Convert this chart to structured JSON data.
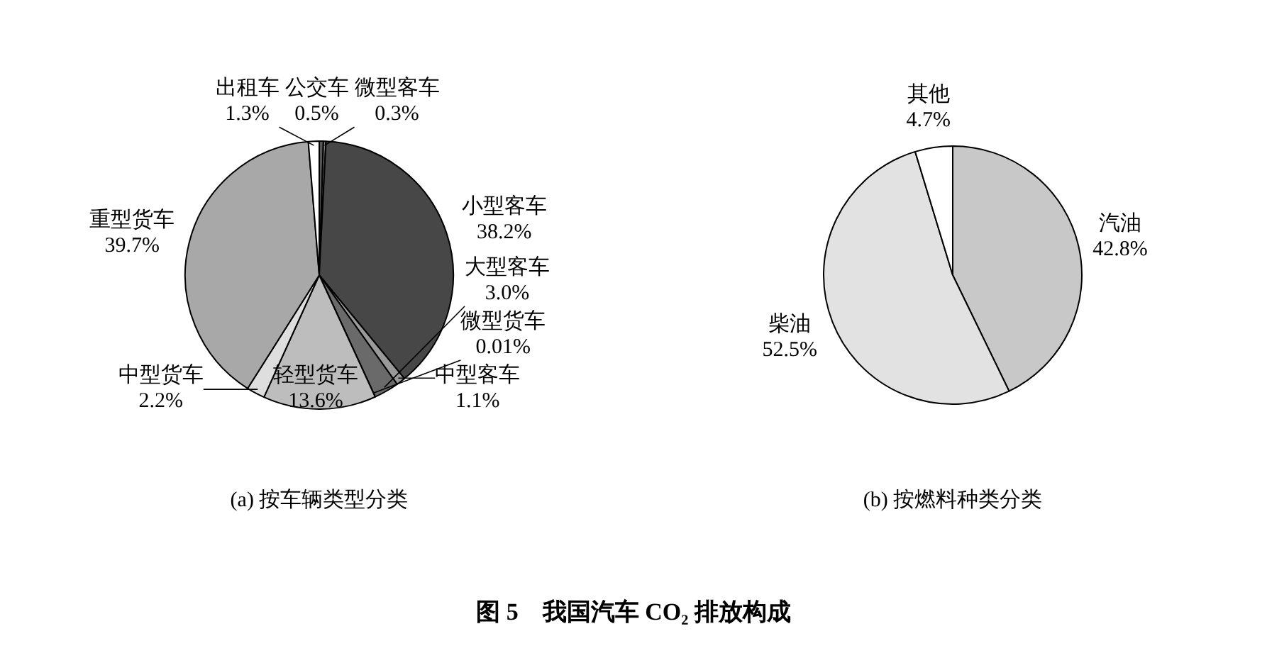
{
  "chart_data": [
    {
      "type": "pie",
      "title": "(a) 按车辆类型分类",
      "categories": [
        "公交车",
        "微型客车",
        "小型客车",
        "中型客车",
        "大型客车",
        "微型货车",
        "轻型货车",
        "中型货车",
        "重型货车",
        "出租车"
      ],
      "values": [
        0.5,
        0.3,
        38.2,
        1.1,
        3.0,
        0.01,
        13.6,
        2.2,
        39.7,
        1.3
      ],
      "value_labels": [
        "0.5%",
        "0.3%",
        "38.2%",
        "1.1%",
        "3.0%",
        "0.01%",
        "13.6%",
        "2.2%",
        "39.7%",
        "1.3%"
      ],
      "colors": [
        "#555555",
        "#888888",
        "#474747",
        "#9a9a9a",
        "#6a6a6a",
        "#f4f4f4",
        "#bdbdbd",
        "#dedede",
        "#a8a8a8",
        "#ffffff"
      ],
      "annotations": [
        "图 5　我国汽车 CO₂ 排放构成"
      ]
    },
    {
      "type": "pie",
      "title": "(b) 按燃料种类分类",
      "categories": [
        "汽油",
        "柴油",
        "其他"
      ],
      "values": [
        42.8,
        52.5,
        4.7
      ],
      "value_labels": [
        "42.8%",
        "52.5%",
        "4.7%"
      ],
      "colors": [
        "#c8c8c8",
        "#e2e2e2",
        "#ffffff"
      ]
    }
  ]
}
